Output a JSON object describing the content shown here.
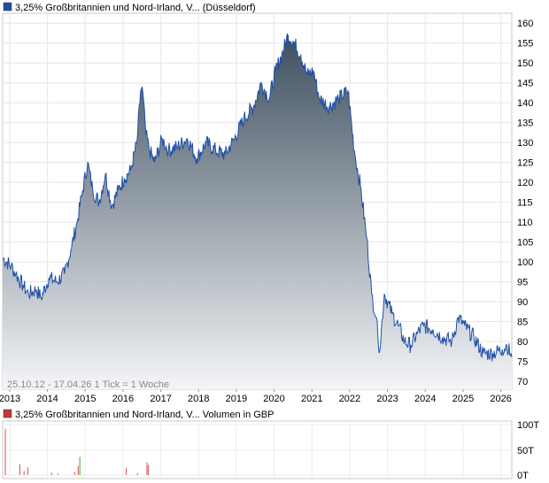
{
  "chart_data": [
    {
      "type": "area",
      "legend": "3,25% Großbritannien und Nord-Irland, V... (Düsseldorf)",
      "footnote": "25.10.12 - 17.04.26   1 Tick = 1 Woche",
      "x_ticks": [
        "2013",
        "2014",
        "2015",
        "2016",
        "2017",
        "2018",
        "2019",
        "2020",
        "2021",
        "2022",
        "2023",
        "2024",
        "2025",
        "2026"
      ],
      "y_ticks": [
        70,
        75,
        80,
        85,
        90,
        95,
        100,
        105,
        110,
        115,
        120,
        125,
        130,
        135,
        140,
        145,
        150,
        155,
        160
      ],
      "ylim": [
        68,
        162.5
      ],
      "xlim": [
        "2012-10-25",
        "2026-04-17"
      ],
      "grid": true,
      "colors": {
        "line": "#1f4fa8",
        "fill_top": "#3e4f5f",
        "fill_bottom": "#f4f5f7",
        "legend_box": "#1f4fa8"
      },
      "x": [
        "2012-10-25",
        "2013-01-15",
        "2013-03-01",
        "2013-05-10",
        "2013-07-01",
        "2013-09-15",
        "2013-11-01",
        "2014-01-15",
        "2014-04-01",
        "2014-06-15",
        "2014-08-15",
        "2014-10-15",
        "2014-12-01",
        "2015-01-25",
        "2015-03-15",
        "2015-05-15",
        "2015-07-15",
        "2015-09-15",
        "2015-11-15",
        "2016-01-15",
        "2016-03-15",
        "2016-05-15",
        "2016-06-20",
        "2016-07-05",
        "2016-08-10",
        "2016-09-15",
        "2016-11-01",
        "2017-01-15",
        "2017-03-15",
        "2017-06-15",
        "2017-09-15",
        "2017-12-15",
        "2018-03-15",
        "2018-06-15",
        "2018-09-15",
        "2018-12-15",
        "2019-03-15",
        "2019-06-15",
        "2019-08-30",
        "2019-11-15",
        "2020-01-15",
        "2020-03-15",
        "2020-05-15",
        "2020-07-15",
        "2020-09-15",
        "2020-11-15",
        "2021-01-15",
        "2021-03-15",
        "2021-06-15",
        "2021-09-15",
        "2021-12-15",
        "2022-02-15",
        "2022-04-15",
        "2022-06-15",
        "2022-08-01",
        "2022-09-15",
        "2022-10-01",
        "2022-10-20",
        "2022-12-01",
        "2023-02-15",
        "2023-04-15",
        "2023-06-15",
        "2023-08-15",
        "2023-10-15",
        "2023-12-15",
        "2024-03-15",
        "2024-06-15",
        "2024-09-15",
        "2024-11-15",
        "2025-01-15",
        "2025-04-15",
        "2025-07-15",
        "2025-10-15",
        "2026-01-15",
        "2026-03-01",
        "2026-04-17"
      ],
      "values": [
        101,
        99,
        97,
        94,
        92,
        93,
        91,
        96,
        95,
        97,
        103,
        110,
        117,
        125,
        118,
        115,
        122,
        114,
        118,
        121,
        123,
        130,
        143,
        144,
        132,
        128,
        125,
        131,
        128,
        129,
        131,
        126,
        130,
        128,
        127,
        131,
        136,
        139,
        145,
        141,
        148,
        152,
        157,
        155,
        152,
        147,
        148,
        141,
        139,
        141,
        143,
        128,
        119,
        106,
        92,
        86,
        81,
        78,
        92,
        87,
        84,
        80,
        79,
        82,
        84,
        83,
        81,
        80,
        86,
        84,
        81,
        77,
        77,
        78,
        79,
        76
      ]
    },
    {
      "type": "bar",
      "legend": "3,25% Großbritannien und Nord-Irland, V... Volumen in GBP",
      "y_ticks": [
        "100T",
        "50T",
        "0T"
      ],
      "ylim": [
        0,
        100
      ],
      "colors": {
        "sell": "#d9534f",
        "buy": "#36b336",
        "legend_box": "#c0393b"
      },
      "bars": [
        {
          "x": "2012-11-20",
          "value": 92,
          "color": "sell"
        },
        {
          "x": "2013-04-10",
          "value": 22,
          "color": "sell"
        },
        {
          "x": "2013-05-20",
          "value": 8,
          "color": "sell"
        },
        {
          "x": "2013-06-25",
          "value": 15,
          "color": "sell"
        },
        {
          "x": "2014-02-10",
          "value": 5,
          "color": "sell"
        },
        {
          "x": "2014-04-15",
          "value": 3,
          "color": "sell"
        },
        {
          "x": "2014-09-20",
          "value": 6,
          "color": "sell"
        },
        {
          "x": "2014-10-25",
          "value": 18,
          "color": "sell"
        },
        {
          "x": "2014-11-10",
          "value": 36,
          "color": "buy"
        },
        {
          "x": "2016-02-01",
          "value": 14,
          "color": "sell"
        },
        {
          "x": "2016-05-20",
          "value": 4,
          "color": "sell"
        },
        {
          "x": "2016-08-20",
          "value": 25,
          "color": "sell"
        },
        {
          "x": "2016-09-01",
          "value": 20,
          "color": "sell"
        }
      ]
    }
  ]
}
